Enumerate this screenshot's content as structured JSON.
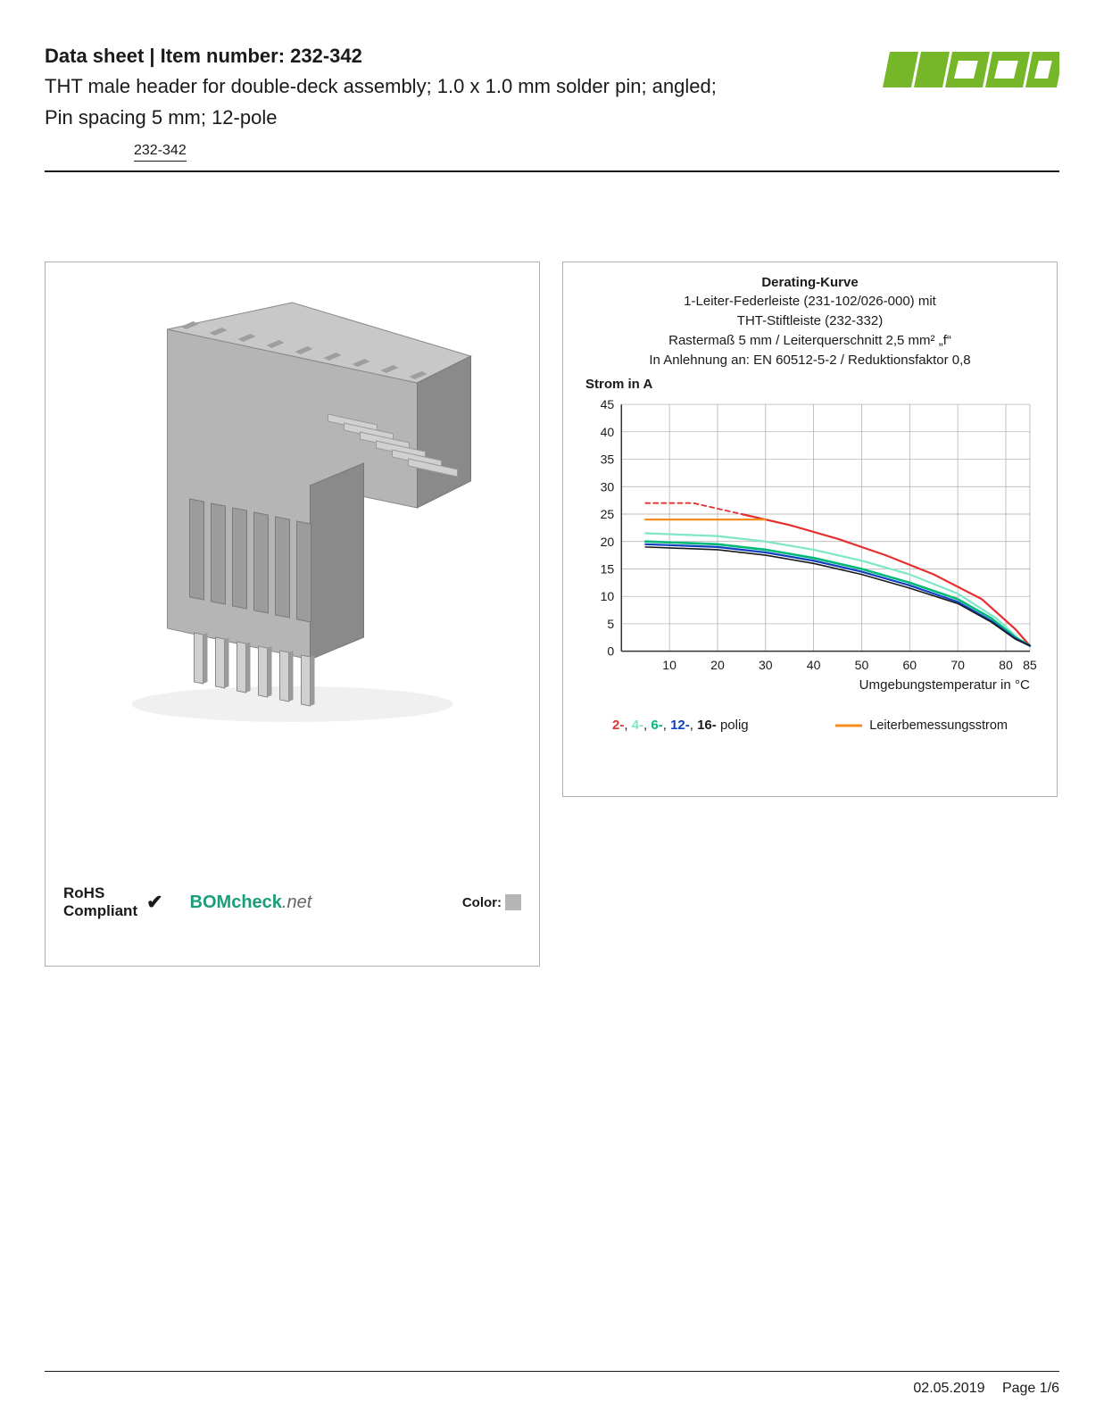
{
  "header": {
    "title_prefix": "Data sheet",
    "title_separator": "  |  ",
    "title_label": "Item number: 232-342",
    "subtitle_line1": "THT male header for double-deck assembly; 1.0 x 1.0 mm solder pin; angled;",
    "subtitle_line2": "Pin spacing 5 mm; 12-pole",
    "part_number": "232-342",
    "logo_text": "WAGO",
    "logo_color": "#76b72a"
  },
  "product_panel": {
    "connector_color": "#b5b5b5",
    "connector_shadow": "#8a8a8a",
    "pin_color": "#d0d0d0",
    "rohs_line1": "RoHS",
    "rohs_line2": "Compliant",
    "checkmark": "✔",
    "bomcheck_main": "BOMcheck",
    "bomcheck_suffix": ".net",
    "color_label": "Color:",
    "color_swatch": "#b5b5b5"
  },
  "chart": {
    "title": "Derating-Kurve",
    "sub1": "1-Leiter-Federleiste (231-102/026-000) mit",
    "sub2": "THT-Stiftleiste (232-332)",
    "sub3": "Rastermaß 5 mm / Leiterquerschnitt 2,5 mm² „f“",
    "sub4": "In Anlehnung an: EN 60512-5-2 / Reduktionsfaktor 0,8",
    "y_label": "Strom in A",
    "x_label": "Umgebungstemperatur in °C",
    "y_max": 45,
    "y_step": 5,
    "x_max": 85,
    "x_ticks": [
      10,
      20,
      30,
      40,
      50,
      60,
      70,
      80,
      85
    ],
    "background": "#ffffff",
    "grid_color": "#aaaaaa",
    "axis_color": "#333333",
    "series": [
      {
        "name": "2-polig",
        "color": "#e63030",
        "dash": "5,4",
        "width": 1.8,
        "points": [
          [
            5,
            27
          ],
          [
            15,
            27
          ],
          [
            25,
            25
          ]
        ]
      },
      {
        "name": "2-polig-solid",
        "color": "#e63030",
        "dash": "",
        "width": 2.2,
        "points": [
          [
            25,
            25
          ],
          [
            35,
            23
          ],
          [
            45,
            20.5
          ],
          [
            55,
            17.5
          ],
          [
            65,
            14
          ],
          [
            75,
            9.5
          ],
          [
            82,
            4
          ],
          [
            85,
            1
          ]
        ]
      },
      {
        "name": "4-polig",
        "color": "#7fe6c9",
        "dash": "",
        "width": 2.2,
        "points": [
          [
            5,
            21.5
          ],
          [
            20,
            21
          ],
          [
            30,
            20
          ],
          [
            40,
            18.5
          ],
          [
            50,
            16.5
          ],
          [
            60,
            14
          ],
          [
            70,
            10.5
          ],
          [
            78,
            6
          ],
          [
            83,
            2
          ],
          [
            85,
            1
          ]
        ]
      },
      {
        "name": "6-polig",
        "color": "#00b878",
        "dash": "",
        "width": 2.6,
        "points": [
          [
            5,
            20
          ],
          [
            20,
            19.5
          ],
          [
            30,
            18.5
          ],
          [
            40,
            17
          ],
          [
            50,
            15
          ],
          [
            60,
            12.5
          ],
          [
            70,
            9.5
          ],
          [
            77,
            6
          ],
          [
            82,
            2.5
          ],
          [
            85,
            1
          ]
        ]
      },
      {
        "name": "12-polig",
        "color": "#1040c0",
        "dash": "",
        "width": 2.2,
        "points": [
          [
            5,
            19.5
          ],
          [
            20,
            19
          ],
          [
            30,
            18
          ],
          [
            40,
            16.5
          ],
          [
            50,
            14.5
          ],
          [
            60,
            12
          ],
          [
            70,
            9
          ],
          [
            77,
            5.5
          ],
          [
            82,
            2.3
          ],
          [
            85,
            1
          ]
        ]
      },
      {
        "name": "16-polig",
        "color": "#1a1a1a",
        "dash": "",
        "width": 1.6,
        "points": [
          [
            5,
            19
          ],
          [
            20,
            18.5
          ],
          [
            30,
            17.5
          ],
          [
            40,
            16
          ],
          [
            50,
            14
          ],
          [
            60,
            11.5
          ],
          [
            70,
            8.7
          ],
          [
            77,
            5.3
          ],
          [
            82,
            2.2
          ],
          [
            85,
            1
          ]
        ]
      },
      {
        "name": "Leiterbemessungsstrom",
        "color": "#f78c1f",
        "dash": "",
        "width": 2.2,
        "points": [
          [
            5,
            24
          ],
          [
            30,
            24
          ]
        ]
      }
    ],
    "legend": {
      "items": [
        {
          "label": "2-",
          "color": "#e63030"
        },
        {
          "label": "4-",
          "color": "#7fe6c9"
        },
        {
          "label": "6-",
          "color": "#00b878"
        },
        {
          "label": "12-",
          "color": "#1040c0"
        },
        {
          "label": "16-",
          "color": "#1a1a1a"
        }
      ],
      "suffix": " polig",
      "right_label": "Leiterbemessungsstrom",
      "right_color": "#f78c1f"
    }
  },
  "footer": {
    "date": "02.05.2019",
    "page": "Page 1/6"
  }
}
